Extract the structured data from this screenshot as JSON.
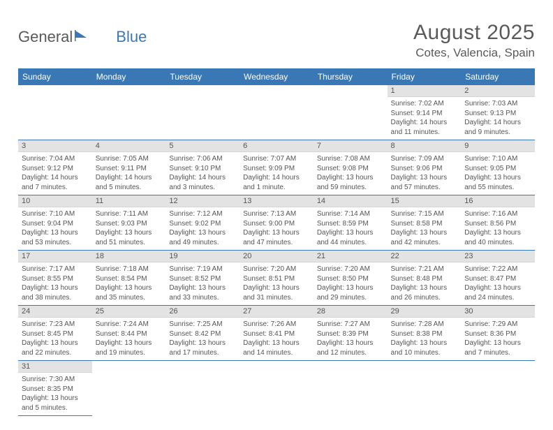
{
  "logo": {
    "text1": "General",
    "text2": "Blue"
  },
  "title": "August 2025",
  "location": "Cotes, Valencia, Spain",
  "colors": {
    "header_bg": "#3a78b5",
    "header_text": "#ffffff",
    "daynum_bg": "#e3e3e3",
    "cell_border": "#3a78b5",
    "text": "#555555",
    "logo_blue": "#3a78b5"
  },
  "day_headers": [
    "Sunday",
    "Monday",
    "Tuesday",
    "Wednesday",
    "Thursday",
    "Friday",
    "Saturday"
  ],
  "weeks": [
    [
      null,
      null,
      null,
      null,
      null,
      {
        "n": "1",
        "sr": "Sunrise: 7:02 AM",
        "ss": "Sunset: 9:14 PM",
        "d1": "Daylight: 14 hours",
        "d2": "and 11 minutes."
      },
      {
        "n": "2",
        "sr": "Sunrise: 7:03 AM",
        "ss": "Sunset: 9:13 PM",
        "d1": "Daylight: 14 hours",
        "d2": "and 9 minutes."
      }
    ],
    [
      {
        "n": "3",
        "sr": "Sunrise: 7:04 AM",
        "ss": "Sunset: 9:12 PM",
        "d1": "Daylight: 14 hours",
        "d2": "and 7 minutes."
      },
      {
        "n": "4",
        "sr": "Sunrise: 7:05 AM",
        "ss": "Sunset: 9:11 PM",
        "d1": "Daylight: 14 hours",
        "d2": "and 5 minutes."
      },
      {
        "n": "5",
        "sr": "Sunrise: 7:06 AM",
        "ss": "Sunset: 9:10 PM",
        "d1": "Daylight: 14 hours",
        "d2": "and 3 minutes."
      },
      {
        "n": "6",
        "sr": "Sunrise: 7:07 AM",
        "ss": "Sunset: 9:09 PM",
        "d1": "Daylight: 14 hours",
        "d2": "and 1 minute."
      },
      {
        "n": "7",
        "sr": "Sunrise: 7:08 AM",
        "ss": "Sunset: 9:08 PM",
        "d1": "Daylight: 13 hours",
        "d2": "and 59 minutes."
      },
      {
        "n": "8",
        "sr": "Sunrise: 7:09 AM",
        "ss": "Sunset: 9:06 PM",
        "d1": "Daylight: 13 hours",
        "d2": "and 57 minutes."
      },
      {
        "n": "9",
        "sr": "Sunrise: 7:10 AM",
        "ss": "Sunset: 9:05 PM",
        "d1": "Daylight: 13 hours",
        "d2": "and 55 minutes."
      }
    ],
    [
      {
        "n": "10",
        "sr": "Sunrise: 7:10 AM",
        "ss": "Sunset: 9:04 PM",
        "d1": "Daylight: 13 hours",
        "d2": "and 53 minutes."
      },
      {
        "n": "11",
        "sr": "Sunrise: 7:11 AM",
        "ss": "Sunset: 9:03 PM",
        "d1": "Daylight: 13 hours",
        "d2": "and 51 minutes."
      },
      {
        "n": "12",
        "sr": "Sunrise: 7:12 AM",
        "ss": "Sunset: 9:02 PM",
        "d1": "Daylight: 13 hours",
        "d2": "and 49 minutes."
      },
      {
        "n": "13",
        "sr": "Sunrise: 7:13 AM",
        "ss": "Sunset: 9:00 PM",
        "d1": "Daylight: 13 hours",
        "d2": "and 47 minutes."
      },
      {
        "n": "14",
        "sr": "Sunrise: 7:14 AM",
        "ss": "Sunset: 8:59 PM",
        "d1": "Daylight: 13 hours",
        "d2": "and 44 minutes."
      },
      {
        "n": "15",
        "sr": "Sunrise: 7:15 AM",
        "ss": "Sunset: 8:58 PM",
        "d1": "Daylight: 13 hours",
        "d2": "and 42 minutes."
      },
      {
        "n": "16",
        "sr": "Sunrise: 7:16 AM",
        "ss": "Sunset: 8:56 PM",
        "d1": "Daylight: 13 hours",
        "d2": "and 40 minutes."
      }
    ],
    [
      {
        "n": "17",
        "sr": "Sunrise: 7:17 AM",
        "ss": "Sunset: 8:55 PM",
        "d1": "Daylight: 13 hours",
        "d2": "and 38 minutes."
      },
      {
        "n": "18",
        "sr": "Sunrise: 7:18 AM",
        "ss": "Sunset: 8:54 PM",
        "d1": "Daylight: 13 hours",
        "d2": "and 35 minutes."
      },
      {
        "n": "19",
        "sr": "Sunrise: 7:19 AM",
        "ss": "Sunset: 8:52 PM",
        "d1": "Daylight: 13 hours",
        "d2": "and 33 minutes."
      },
      {
        "n": "20",
        "sr": "Sunrise: 7:20 AM",
        "ss": "Sunset: 8:51 PM",
        "d1": "Daylight: 13 hours",
        "d2": "and 31 minutes."
      },
      {
        "n": "21",
        "sr": "Sunrise: 7:20 AM",
        "ss": "Sunset: 8:50 PM",
        "d1": "Daylight: 13 hours",
        "d2": "and 29 minutes."
      },
      {
        "n": "22",
        "sr": "Sunrise: 7:21 AM",
        "ss": "Sunset: 8:48 PM",
        "d1": "Daylight: 13 hours",
        "d2": "and 26 minutes."
      },
      {
        "n": "23",
        "sr": "Sunrise: 7:22 AM",
        "ss": "Sunset: 8:47 PM",
        "d1": "Daylight: 13 hours",
        "d2": "and 24 minutes."
      }
    ],
    [
      {
        "n": "24",
        "sr": "Sunrise: 7:23 AM",
        "ss": "Sunset: 8:45 PM",
        "d1": "Daylight: 13 hours",
        "d2": "and 22 minutes."
      },
      {
        "n": "25",
        "sr": "Sunrise: 7:24 AM",
        "ss": "Sunset: 8:44 PM",
        "d1": "Daylight: 13 hours",
        "d2": "and 19 minutes."
      },
      {
        "n": "26",
        "sr": "Sunrise: 7:25 AM",
        "ss": "Sunset: 8:42 PM",
        "d1": "Daylight: 13 hours",
        "d2": "and 17 minutes."
      },
      {
        "n": "27",
        "sr": "Sunrise: 7:26 AM",
        "ss": "Sunset: 8:41 PM",
        "d1": "Daylight: 13 hours",
        "d2": "and 14 minutes."
      },
      {
        "n": "28",
        "sr": "Sunrise: 7:27 AM",
        "ss": "Sunset: 8:39 PM",
        "d1": "Daylight: 13 hours",
        "d2": "and 12 minutes."
      },
      {
        "n": "29",
        "sr": "Sunrise: 7:28 AM",
        "ss": "Sunset: 8:38 PM",
        "d1": "Daylight: 13 hours",
        "d2": "and 10 minutes."
      },
      {
        "n": "30",
        "sr": "Sunrise: 7:29 AM",
        "ss": "Sunset: 8:36 PM",
        "d1": "Daylight: 13 hours",
        "d2": "and 7 minutes."
      }
    ],
    [
      {
        "n": "31",
        "sr": "Sunrise: 7:30 AM",
        "ss": "Sunset: 8:35 PM",
        "d1": "Daylight: 13 hours",
        "d2": "and 5 minutes."
      },
      null,
      null,
      null,
      null,
      null,
      null
    ]
  ]
}
